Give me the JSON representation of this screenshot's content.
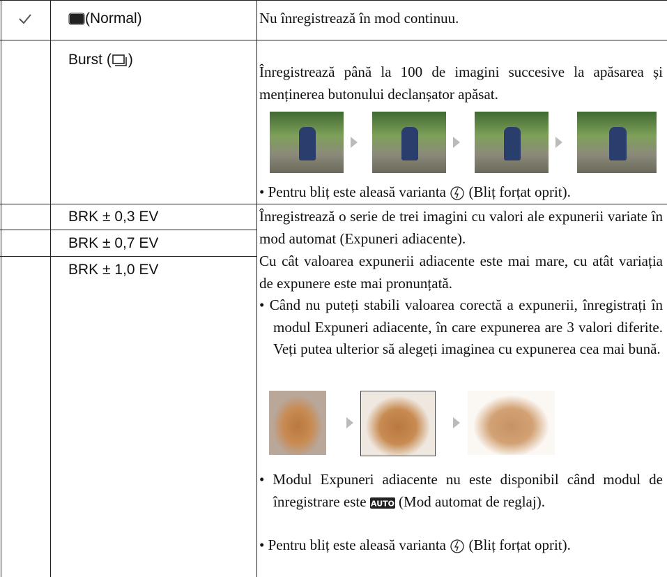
{
  "table": {
    "rows": [
      {
        "option": "(Normal)",
        "description": "Nu înregistrează în mod continuu."
      },
      {
        "option_before": "Burst (",
        "option_after": ")",
        "description": "Înregistrează până la 100 de imagini succesive la apăsarea și menținerea  butonului declanșator apăsat.",
        "note_before": "• Pentru bliț este aleasă varianta",
        "note_after": "(Bliț forțat oprit)."
      },
      {
        "options": [
          "BRK ± 0,3 EV",
          "BRK ± 0,7 EV",
          "BRK ± 1,0 EV"
        ],
        "paragraphs": [
          "Înregistrează o serie de trei imagini cu valori ale expunerii variate în mod automat (Expuneri adiacente).",
          "Cu cât valoarea expunerii adiacente este mai mare, cu atât variația de expunere este mai pronunțată."
        ],
        "bullet": "• Când nu puteți stabili valoarea corectă a expunerii, înregistrați în modul Expuneri adiacente, în care expunerea are 3 valori diferite. Veți putea ulterior să alegeți imaginea cu expunerea cea mai bună.",
        "note1_before": "• Modul Expuneri adiacente nu este disponibil când modul de înregistrare este",
        "note1_after": "(Mod automat de reglaj).",
        "note2_before": "• Pentru bliț este aleasă varianta",
        "note2_after": "(Bliț forțat oprit)."
      }
    ]
  }
}
